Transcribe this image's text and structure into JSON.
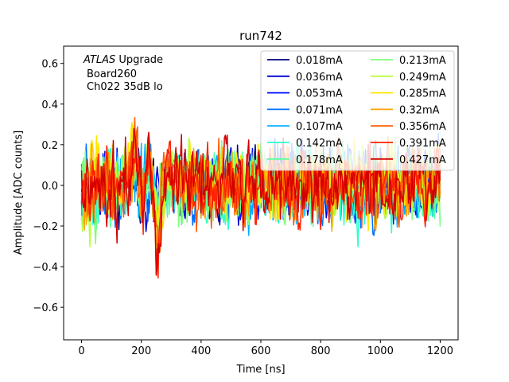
{
  "chart_data": {
    "type": "line",
    "title": "run742",
    "xlabel": "Time [ns]",
    "ylabel": "Amplitude [ADC counts]",
    "xlim": [
      -60,
      1260
    ],
    "ylim": [
      -0.76,
      0.685
    ],
    "xticks": [
      0,
      200,
      400,
      600,
      800,
      1000,
      1200
    ],
    "yticks": [
      -0.6,
      -0.4,
      -0.2,
      0.0,
      0.2,
      0.4,
      0.6
    ],
    "xtick_labels": [
      "0",
      "200",
      "400",
      "600",
      "800",
      "1000",
      "1200"
    ],
    "ytick_labels": [
      "−0.6",
      "−0.4",
      "−0.2",
      "0.0",
      "0.2",
      "0.4",
      "0.6"
    ],
    "annotation": {
      "italic": "ATLAS",
      "rest": " Upgrade",
      "line2": "Board260",
      "line3": "Ch022 35dB lo"
    },
    "legend_position": "top-right",
    "legend_columns": 2,
    "sampling": {
      "t_start": 0,
      "t_end": 1200,
      "dt": 3.125
    },
    "series": [
      {
        "name": "0.018mA",
        "color": "#00007f",
        "noise_amp": 0.19,
        "pulse_amp": 0.06,
        "seed": 11
      },
      {
        "name": "0.036mA",
        "color": "#0000d0",
        "noise_amp": 0.2,
        "pulse_amp": 0.08,
        "seed": 23
      },
      {
        "name": "0.053mA",
        "color": "#0010ff",
        "noise_amp": 0.2,
        "pulse_amp": 0.1,
        "seed": 37
      },
      {
        "name": "0.071mA",
        "color": "#0070ff",
        "noise_amp": 0.21,
        "pulse_amp": 0.12,
        "seed": 41
      },
      {
        "name": "0.107mA",
        "color": "#00b0ff",
        "noise_amp": 0.21,
        "pulse_amp": 0.15,
        "seed": 53
      },
      {
        "name": "0.142mA",
        "color": "#29ffce",
        "noise_amp": 0.21,
        "pulse_amp": 0.18,
        "seed": 67
      },
      {
        "name": "0.178mA",
        "color": "#58ff9e",
        "noise_amp": 0.21,
        "pulse_amp": 0.21,
        "seed": 71
      },
      {
        "name": "0.213mA",
        "color": "#7dff7a",
        "noise_amp": 0.21,
        "pulse_amp": 0.24,
        "seed": 83
      },
      {
        "name": "0.249mA",
        "color": "#b8ff3f",
        "noise_amp": 0.21,
        "pulse_amp": 0.27,
        "seed": 97
      },
      {
        "name": "0.285mA",
        "color": "#ffe600",
        "noise_amp": 0.21,
        "pulse_amp": 0.3,
        "seed": 103
      },
      {
        "name": "0.32mA",
        "color": "#ffa000",
        "noise_amp": 0.21,
        "pulse_amp": 0.33,
        "seed": 113
      },
      {
        "name": "0.356mA",
        "color": "#ff5a00",
        "noise_amp": 0.21,
        "pulse_amp": 0.36,
        "seed": 127
      },
      {
        "name": "0.391mA",
        "color": "#ff2200",
        "noise_amp": 0.21,
        "pulse_amp": 0.39,
        "seed": 131
      },
      {
        "name": "0.427mA",
        "color": "#d40000",
        "noise_amp": 0.22,
        "pulse_amp": 0.42,
        "seed": 149
      }
    ]
  }
}
